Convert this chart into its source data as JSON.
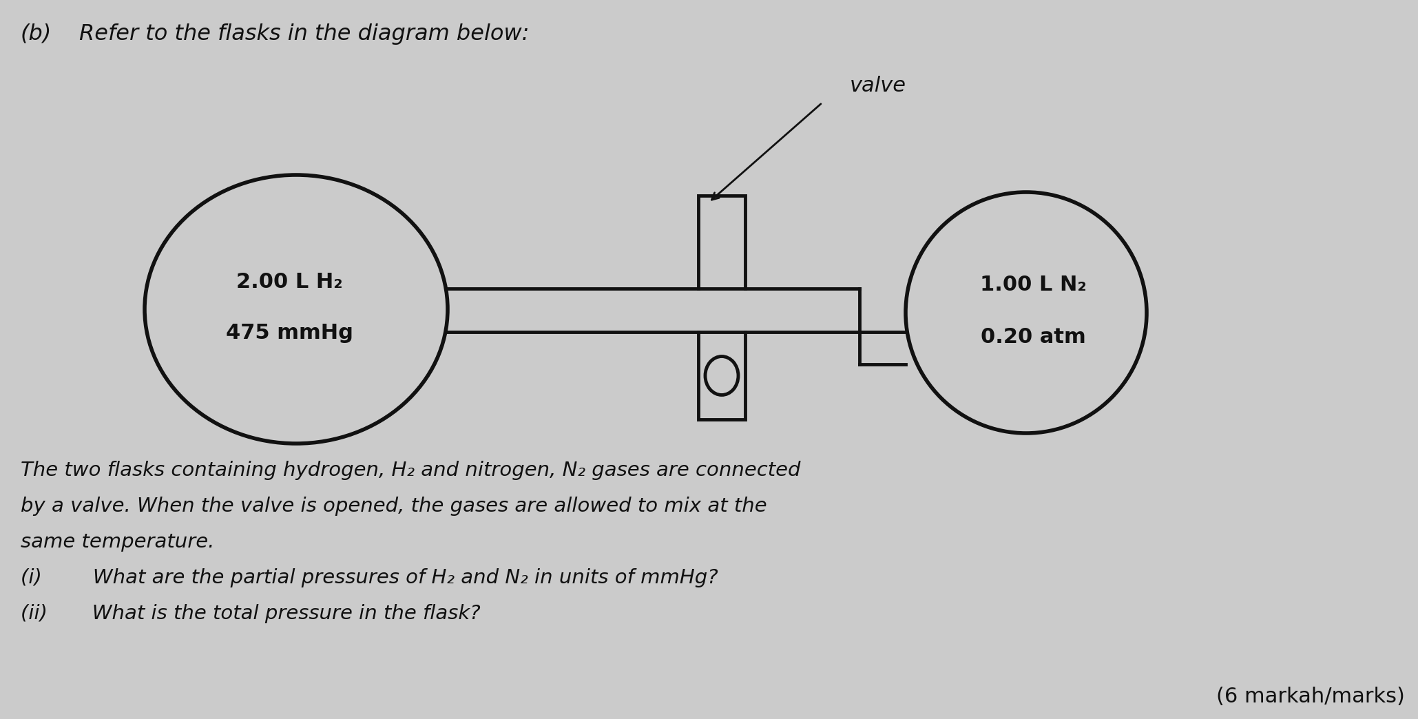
{
  "bg_color": "#cbcbcb",
  "title_b": "(b)",
  "title_text": "Refer to the flasks in the diagram below:",
  "left_flask_label_line1": "2.00 L H₂",
  "left_flask_label_line2": "475 mmHg",
  "right_flask_label_line1": "1.00 L N₂",
  "right_flask_label_line2": "0.20 atm",
  "valve_label": "valve",
  "body_text_line1": "The two flasks containing hydrogen, H₂ and nitrogen, N₂ gases are connected",
  "body_text_line2": "by a valve. When the valve is opened, the gases are allowed to mix at the",
  "body_text_line3": "same temperature.",
  "question_i": "(i)        What are the partial pressures of H₂ and N₂ in units of mmHg?",
  "question_ii": "(ii)       What is the total pressure in the flask?",
  "marks_text": "(6 markah/marks)",
  "line_color": "#111111",
  "text_color": "#111111",
  "font_size_title": 23,
  "font_size_label": 22,
  "font_size_valve": 22,
  "font_size_body": 21,
  "font_size_marks": 22
}
